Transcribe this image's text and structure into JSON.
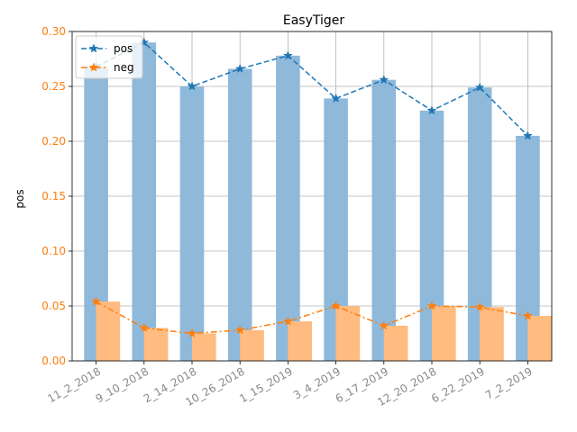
{
  "chart_data": {
    "type": "bar",
    "title": "EasyTiger",
    "xlabel": "",
    "ylabel": "pos",
    "ylim": [
      0,
      0.3
    ],
    "yticks": [
      "0.00",
      "0.05",
      "0.10",
      "0.15",
      "0.20",
      "0.25",
      "0.30"
    ],
    "grid": true,
    "legend_position": "top-left",
    "categories": [
      "11_2_2018",
      "9_10_2018",
      "2_14_2018",
      "10_26_2018",
      "1_15_2019",
      "3_4_2019",
      "6_17_2019",
      "12_20_2018",
      "6_22_2019",
      "7_2_2019"
    ],
    "series": [
      {
        "name": "pos",
        "values": [
          0.268,
          0.29,
          0.25,
          0.266,
          0.278,
          0.239,
          0.256,
          0.228,
          0.249,
          0.205
        ],
        "bar_color": "#8fb9da",
        "line_color": "#1f77b4",
        "line_style": "dashed"
      },
      {
        "name": "neg",
        "values": [
          0.054,
          0.03,
          0.025,
          0.028,
          0.036,
          0.05,
          0.032,
          0.05,
          0.049,
          0.041
        ],
        "bar_color": "#ffbb80",
        "line_color": "#ff7f0e",
        "line_style": "dash-dot"
      }
    ],
    "ytick_color": "#ff7f0e",
    "xtick_color": "#888888"
  }
}
